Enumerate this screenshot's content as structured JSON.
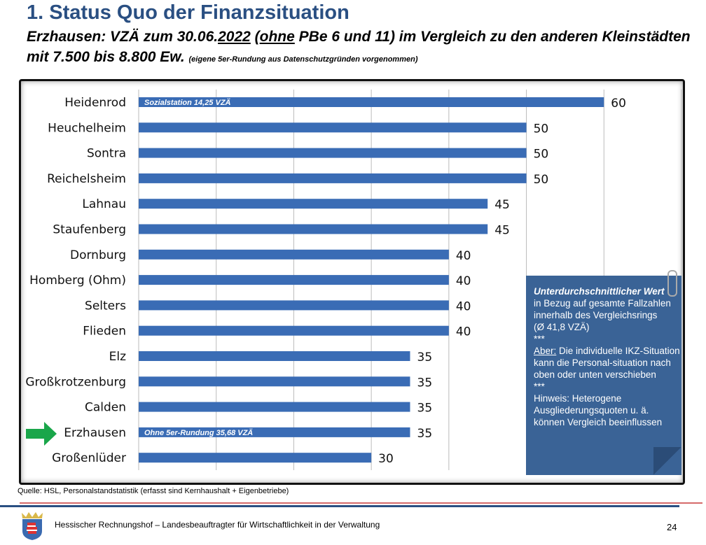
{
  "header": {
    "title": "1. Status Quo der Finanzsituation",
    "subtitle_parts": [
      "Erzhausen: VZÄ zum 30.06.",
      "2022",
      " (",
      "ohne",
      " PBe 6 und 11) im Vergleich zu den anderen Kleinstädten mit 7.500 bis 8.800 Ew. "
    ],
    "subtitle_note": "(eigene 5er-Rundung aus Datenschutzgründen vorgenommen)"
  },
  "chart_data": {
    "type": "bar",
    "orientation": "horizontal",
    "categories": [
      "Heidenrod",
      "Heuchelheim",
      "Sontra",
      "Reichelsheim",
      "Lahnau",
      "Staufenberg",
      "Dornburg",
      "Homberg (Ohm)",
      "Selters",
      "Flieden",
      "Elz",
      "Großkrotzenburg",
      "Calden",
      "Erzhausen",
      "Großenlüder"
    ],
    "values": [
      60,
      50,
      50,
      50,
      45,
      45,
      40,
      40,
      40,
      40,
      35,
      35,
      35,
      35,
      30
    ],
    "xlim": [
      0,
      70
    ],
    "grid": true,
    "bar_color": "#3a6cb5",
    "annotations": [
      {
        "category": "Heidenrod",
        "text": "Sozialstation 14,25 VZÄ"
      },
      {
        "category": "Erzhausen",
        "text": "Ohne 5er-Rundung 35,68 VZÄ"
      }
    ],
    "highlight": {
      "category": "Erzhausen",
      "marker": "arrow",
      "color": "#1aa64a"
    }
  },
  "note": {
    "title": "Unterdurchschnittlicher Wert",
    "lines": [
      "in Bezug auf gesamte Fallzahlen innerhalb des Vergleichsrings",
      "(Ø 41,8 VZÄ)",
      "***"
    ],
    "aber_label": "Aber:",
    "aber_text": " Die individuelle IKZ-Situation kann die Personal-situation nach oben oder unten verschieben",
    "stars2": " ***",
    "hinweis": "Hinweis: Heterogene Ausgliederungsquoten u. ä. können Vergleich beeinflussen",
    "color": "#3a6396"
  },
  "footer": {
    "source": "Quelle: HSL, Personalstandstatistik (erfasst sind Kernhaushalt + Eigenbetriebe)",
    "org": "Hessischer Rechnungshof – Landesbeauftragter für Wirtschaftlichkeit in der Verwaltung",
    "page": "24"
  }
}
